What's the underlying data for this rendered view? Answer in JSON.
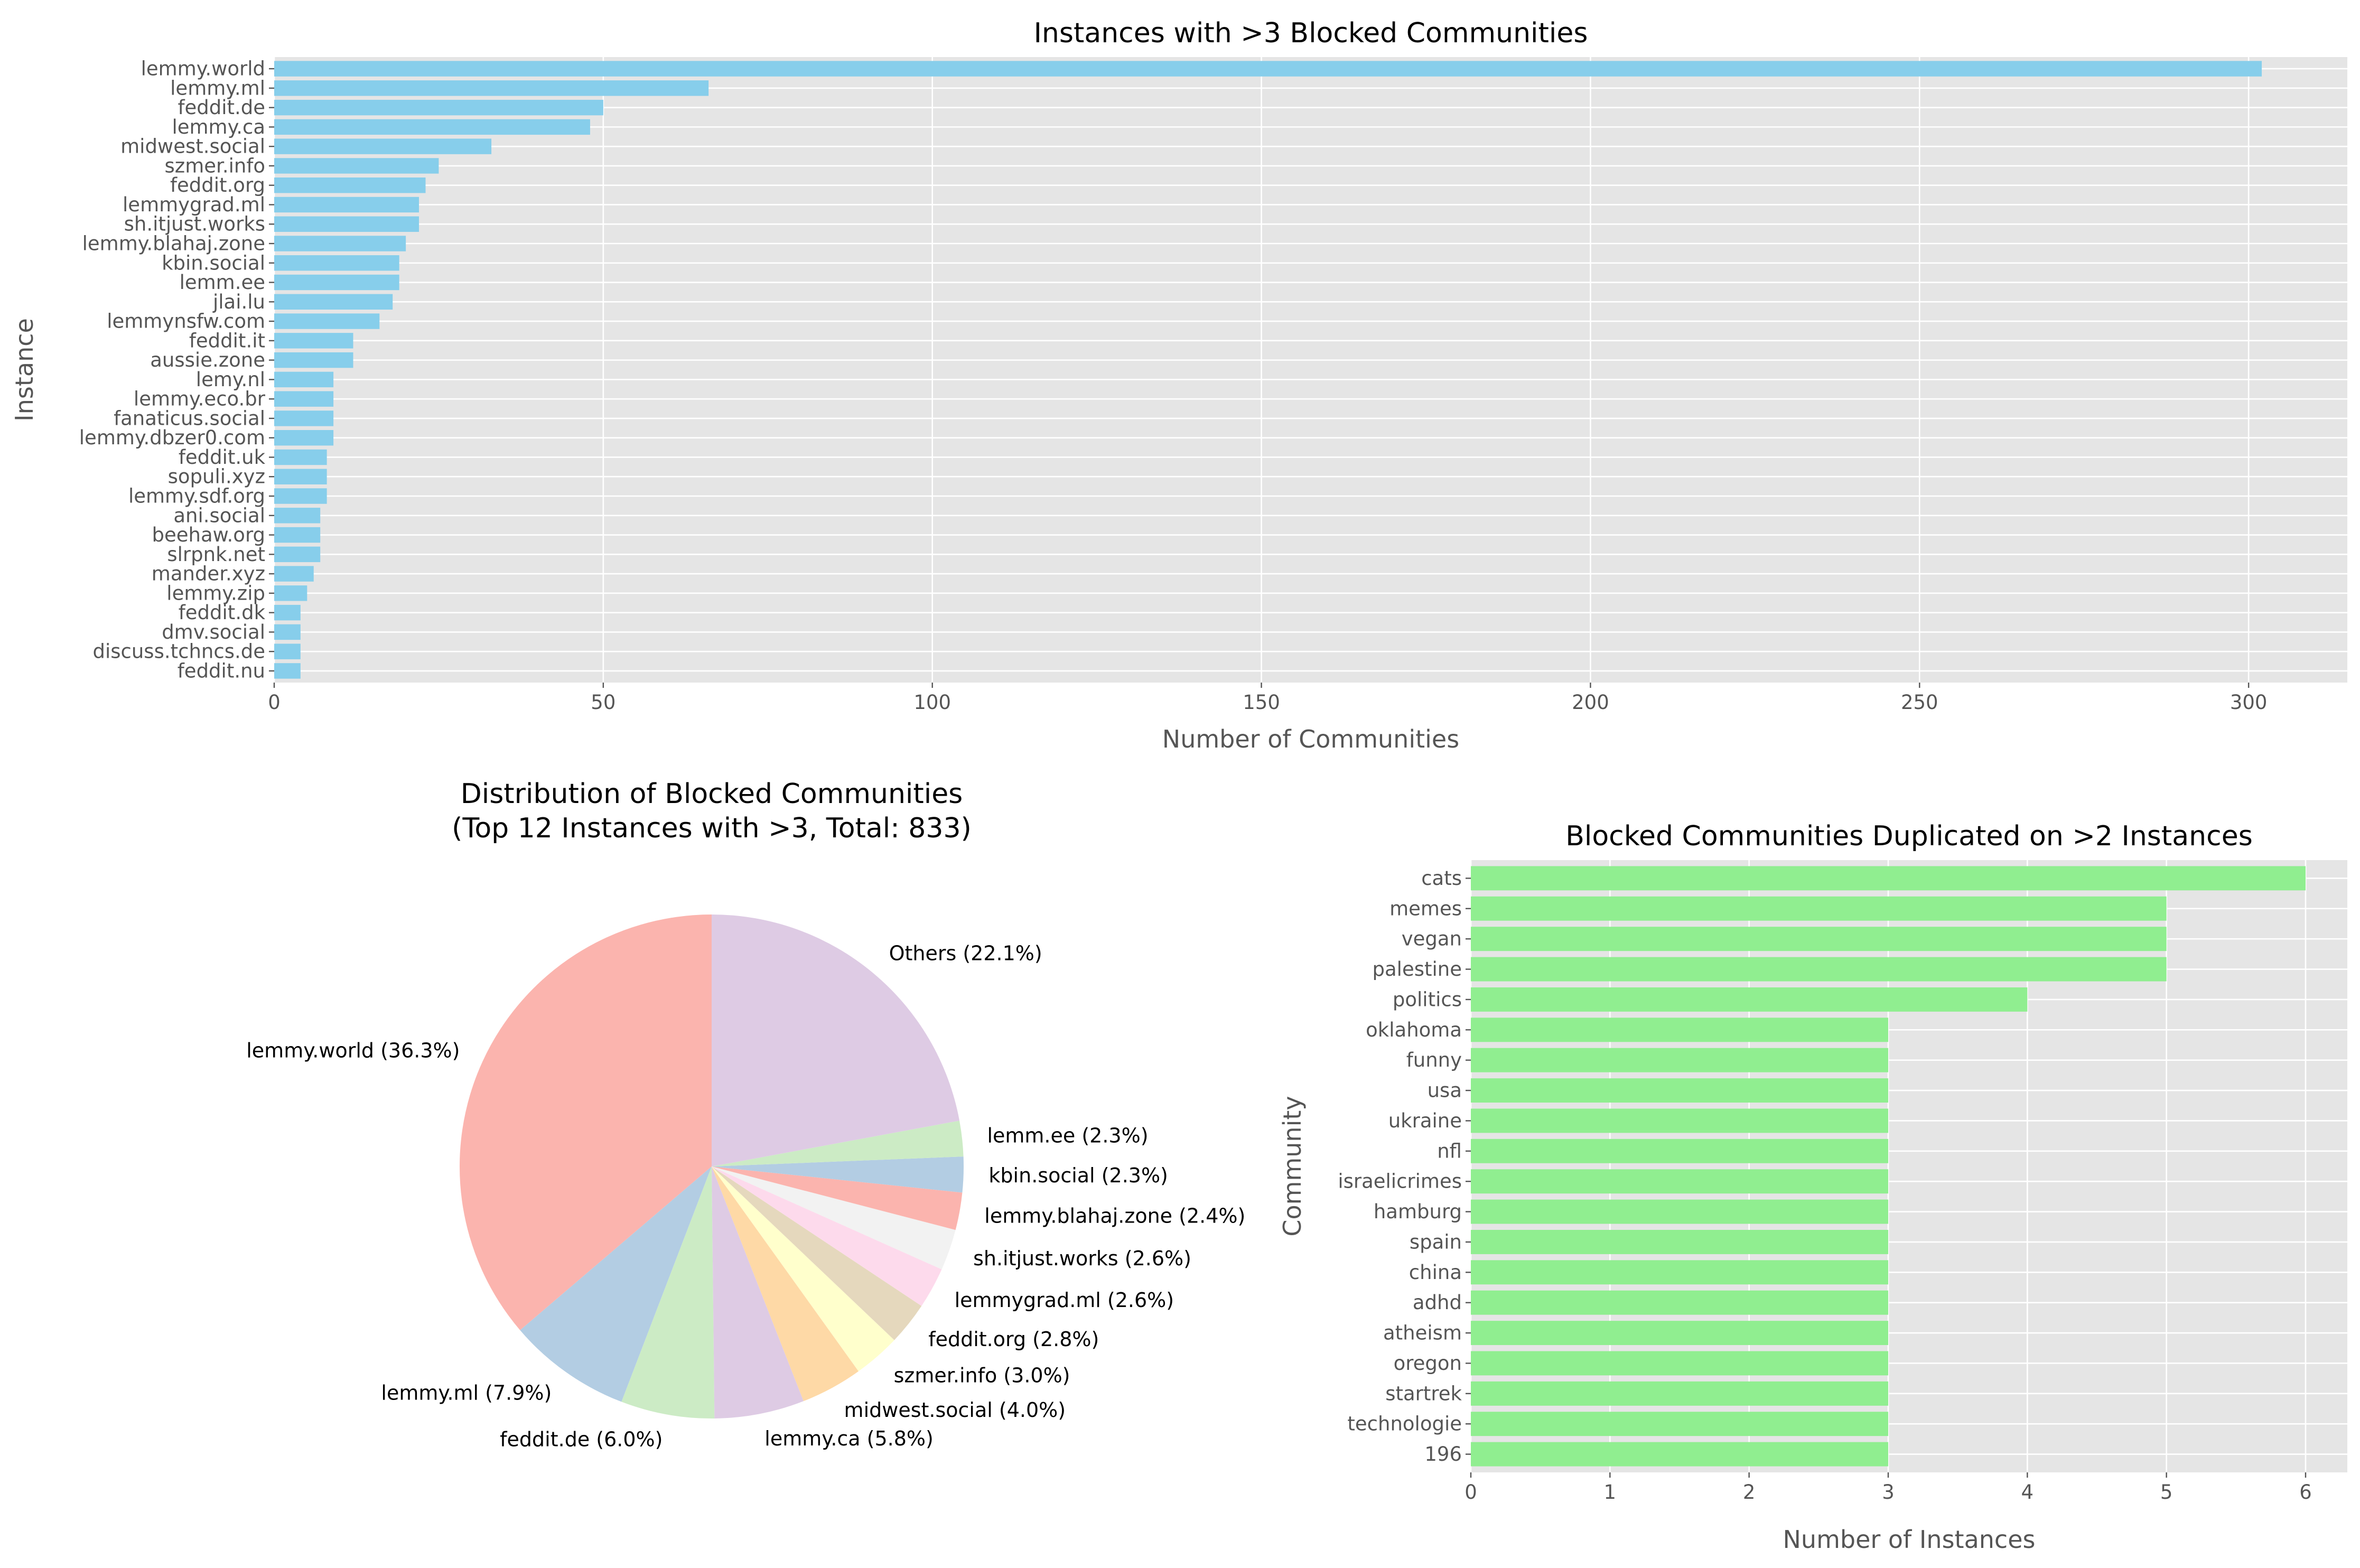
{
  "chart_data": [
    {
      "type": "bar",
      "orientation": "horizontal",
      "title": "Instances with >3 Blocked Communities",
      "xlabel": "Number of Communities",
      "ylabel": "Instance",
      "xlim": [
        0,
        315
      ],
      "xticks": [
        0,
        50,
        100,
        150,
        200,
        250,
        300
      ],
      "grid": true,
      "bar_color": "#87CEEB",
      "categories": [
        "lemmy.world",
        "lemmy.ml",
        "feddit.de",
        "lemmy.ca",
        "midwest.social",
        "szmer.info",
        "feddit.org",
        "lemmygrad.ml",
        "sh.itjust.works",
        "lemmy.blahaj.zone",
        "kbin.social",
        "lemm.ee",
        "jlai.lu",
        "lemmynsfw.com",
        "feddit.it",
        "aussie.zone",
        "lemy.nl",
        "lemmy.eco.br",
        "fanaticus.social",
        "lemmy.dbzer0.com",
        "feddit.uk",
        "sopuli.xyz",
        "lemmy.sdf.org",
        "ani.social",
        "beehaw.org",
        "slrpnk.net",
        "mander.xyz",
        "lemmy.zip",
        "feddit.dk",
        "dmv.social",
        "discuss.tchncs.de",
        "feddit.nu"
      ],
      "values": [
        302,
        66,
        50,
        48,
        33,
        25,
        23,
        22,
        22,
        20,
        19,
        19,
        18,
        16,
        12,
        12,
        9,
        9,
        9,
        9,
        8,
        8,
        8,
        7,
        7,
        7,
        6,
        5,
        4,
        4,
        4,
        4
      ]
    },
    {
      "type": "pie",
      "title": "Distribution of Blocked Communities\n(Top 12 Instances with >3, Total: 833)",
      "title_lines": [
        "Distribution of Blocked Communities",
        "(Top 12 Instances with >3, Total: 833)"
      ],
      "labels": [
        "lemmy.world (36.3%)",
        "lemmy.ml (7.9%)",
        "feddit.de (6.0%)",
        "lemmy.ca (5.8%)",
        "midwest.social (4.0%)",
        "szmer.info (3.0%)",
        "feddit.org (2.8%)",
        "lemmygrad.ml (2.6%)",
        "sh.itjust.works (2.6%)",
        "lemmy.blahaj.zone (2.4%)",
        "kbin.social (2.3%)",
        "lemm.ee (2.3%)",
        "Others (22.1%)"
      ],
      "values": [
        302,
        66,
        50,
        48,
        33,
        25,
        23,
        22,
        22,
        20,
        19,
        19,
        184
      ],
      "percentages": [
        36.3,
        7.9,
        6.0,
        5.8,
        4.0,
        3.0,
        2.8,
        2.6,
        2.6,
        2.4,
        2.3,
        2.3,
        22.1
      ],
      "colors": [
        "#FBB4AE",
        "#B3CDE3",
        "#CCEBC5",
        "#DECBE4",
        "#FED9A6",
        "#FFFFCC",
        "#E5D8BD",
        "#FDDAEC",
        "#F2F2F2"
      ],
      "start_angle": 90,
      "direction": "counterclockwise"
    },
    {
      "type": "bar",
      "orientation": "horizontal",
      "title": "Blocked Communities Duplicated on >2 Instances",
      "xlabel": "Number of Instances",
      "ylabel": "Community",
      "xlim": [
        0,
        6.3
      ],
      "xticks": [
        0,
        1,
        2,
        3,
        4,
        5,
        6
      ],
      "grid": true,
      "bar_color": "#90EE90",
      "categories": [
        "cats",
        "memes",
        "vegan",
        "palestine",
        "politics",
        "oklahoma",
        "funny",
        "usa",
        "ukraine",
        "nfl",
        "israelicrimes",
        "hamburg",
        "spain",
        "china",
        "adhd",
        "atheism",
        "oregon",
        "startrek",
        "technologie",
        "196"
      ],
      "values": [
        6,
        5,
        5,
        5,
        4,
        3,
        3,
        3,
        3,
        3,
        3,
        3,
        3,
        3,
        3,
        3,
        3,
        3,
        3,
        3
      ]
    }
  ]
}
